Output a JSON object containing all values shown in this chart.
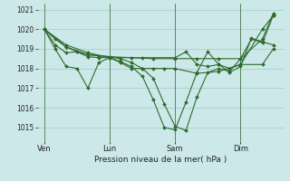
{
  "bg_color": "#cde8e8",
  "grid_color": "#9ecece",
  "line_color": "#2d6b2d",
  "marker_color": "#2d6b2d",
  "xlabel": "Pression niveau de la mer( hPa )",
  "ylim": [
    1014.3,
    1021.3
  ],
  "yticks": [
    1015,
    1016,
    1017,
    1018,
    1019,
    1020,
    1021
  ],
  "xtick_labels": [
    "Ven",
    "Lun",
    "Sam",
    "Dim"
  ],
  "vline_positions": [
    0,
    3,
    6,
    9
  ],
  "lines": [
    {
      "x": [
        0,
        0.5,
        1,
        1.5,
        2,
        2.5,
        3,
        3.5,
        4,
        4.5,
        5,
        5.5,
        6,
        6.5,
        7,
        7.5,
        8,
        8.5,
        9,
        9.5,
        10,
        10.5
      ],
      "y": [
        1020.0,
        1019.5,
        1019.1,
        1018.85,
        1018.7,
        1018.65,
        1018.6,
        1018.5,
        1018.3,
        1018.0,
        1017.5,
        1016.2,
        1015.05,
        1014.85,
        1016.55,
        1017.8,
        1018.0,
        1017.85,
        1018.5,
        1019.5,
        1019.3,
        1020.7
      ]
    },
    {
      "x": [
        0,
        1,
        2,
        3,
        4,
        5,
        6,
        7,
        8,
        9,
        10,
        10.5
      ],
      "y": [
        1020.0,
        1019.1,
        1018.7,
        1018.6,
        1018.55,
        1018.5,
        1018.5,
        1018.5,
        1018.5,
        1018.5,
        1019.5,
        1020.8
      ]
    },
    {
      "x": [
        0,
        0.5,
        1,
        1.5,
        2,
        2.5,
        3,
        3.5,
        4,
        4.5,
        5,
        5.5,
        6,
        7,
        8,
        9,
        10,
        10.5
      ],
      "y": [
        1020.0,
        1019.0,
        1018.1,
        1018.0,
        1017.0,
        1018.3,
        1018.55,
        1018.3,
        1018.0,
        1018.0,
        1018.0,
        1018.0,
        1018.0,
        1017.75,
        1017.85,
        1018.2,
        1018.2,
        1019.0
      ]
    },
    {
      "x": [
        0,
        0.5,
        1,
        1.5,
        2,
        2.5,
        3,
        3.5,
        4,
        4.5,
        5,
        5.5,
        6,
        6.5,
        7,
        7.5,
        8,
        8.5,
        9,
        9.5,
        10,
        10.5
      ],
      "y": [
        1020.0,
        1019.2,
        1018.8,
        1018.85,
        1018.6,
        1018.55,
        1018.55,
        1018.35,
        1018.1,
        1017.6,
        1016.4,
        1015.0,
        1014.88,
        1016.3,
        1017.8,
        1018.85,
        1018.2,
        1017.8,
        1018.1,
        1019.55,
        1019.35,
        1019.2
      ]
    },
    {
      "x": [
        0,
        1,
        2,
        3,
        4.5,
        6,
        6.5,
        7,
        7.5,
        8,
        8.5,
        9,
        10,
        10.5
      ],
      "y": [
        1020.0,
        1019.2,
        1018.8,
        1018.55,
        1018.55,
        1018.55,
        1018.85,
        1018.2,
        1018.1,
        1018.2,
        1018.0,
        1018.2,
        1020.0,
        1020.7
      ]
    }
  ],
  "xlim": [
    -0.3,
    11.0
  ]
}
